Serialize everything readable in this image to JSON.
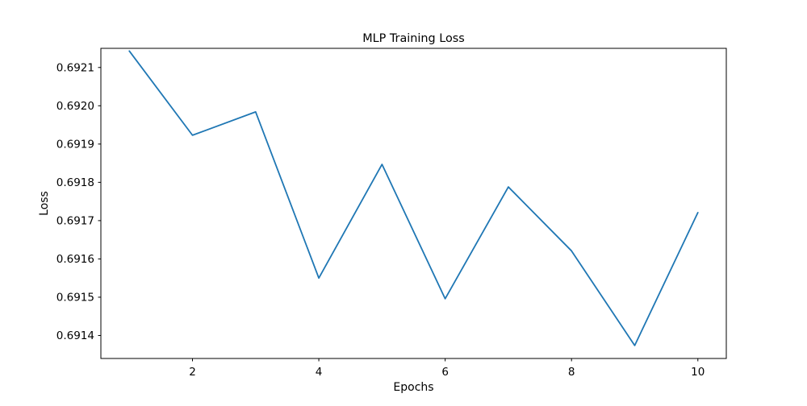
{
  "chart_data": {
    "type": "line",
    "title": "MLP Training Loss",
    "xlabel": "Epochs",
    "ylabel": "Loss",
    "x": [
      1,
      2,
      3,
      4,
      5,
      6,
      7,
      8,
      9,
      10
    ],
    "series": [
      {
        "values": [
          0.692143,
          0.691923,
          0.691984,
          0.69155,
          0.691847,
          0.691496,
          0.691788,
          0.691621,
          0.691374,
          0.691721
        ],
        "color": "#1f77b4"
      }
    ],
    "xlim": [
      0.55,
      10.45
    ],
    "ylim": [
      0.69134,
      0.69215
    ],
    "xticks": [
      2,
      4,
      6,
      8,
      10
    ],
    "xtick_labels": [
      "2",
      "4",
      "6",
      "8",
      "10"
    ],
    "yticks": [
      0.6914,
      0.6915,
      0.6916,
      0.6917,
      0.6918,
      0.6919,
      0.692,
      0.6921
    ],
    "ytick_labels": [
      "0.6914",
      "0.6915",
      "0.6916",
      "0.6917",
      "0.6918",
      "0.6919",
      "0.6920",
      "0.6921"
    ],
    "grid": false,
    "legend": false
  }
}
